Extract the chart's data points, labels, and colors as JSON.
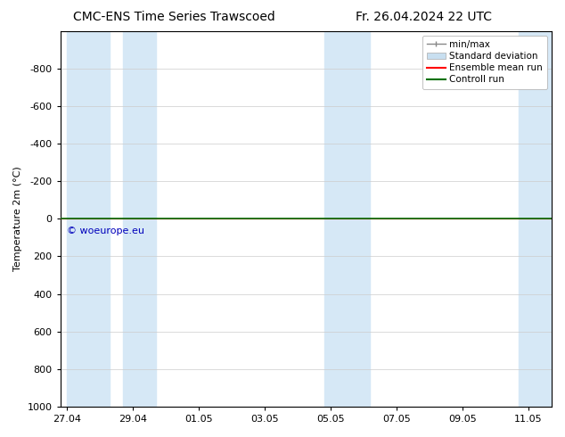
{
  "title_left": "CMC-ENS Time Series Trawscoed",
  "title_right": "Fr. 26.04.2024 22 UTC",
  "ylabel": "Temperature 2m (°C)",
  "ylim_top": -1000,
  "ylim_bottom": 1000,
  "yticks": [
    -800,
    -600,
    -400,
    -200,
    0,
    200,
    400,
    600,
    800,
    1000
  ],
  "xtick_labels": [
    "27.04",
    "29.04",
    "01.05",
    "03.05",
    "05.05",
    "07.05",
    "09.05",
    "11.05"
  ],
  "xtick_positions": [
    0,
    2,
    4,
    6,
    8,
    10,
    12,
    14
  ],
  "xlim": [
    -0.2,
    14.7
  ],
  "background_color": "#ffffff",
  "band_color": "#d6e8f6",
  "bands": [
    [
      0.0,
      1.3
    ],
    [
      1.7,
      2.7
    ],
    [
      7.8,
      9.2
    ],
    [
      13.7,
      14.7
    ]
  ],
  "green_line_color": "#007000",
  "red_line_color": "#ff0000",
  "watermark_text": "© woeurope.eu",
  "watermark_color": "#0000bb",
  "legend_items": [
    {
      "label": "min/max",
      "color": "#888888",
      "style": "errorbar"
    },
    {
      "label": "Standard deviation",
      "color": "#c8dff0",
      "style": "box"
    },
    {
      "label": "Ensemble mean run",
      "color": "#ff0000",
      "style": "line"
    },
    {
      "label": "Controll run",
      "color": "#007000",
      "style": "line"
    }
  ],
  "font_size_title": 10,
  "font_size_axis": 8,
  "font_size_legend": 7.5,
  "font_size_watermark": 8
}
